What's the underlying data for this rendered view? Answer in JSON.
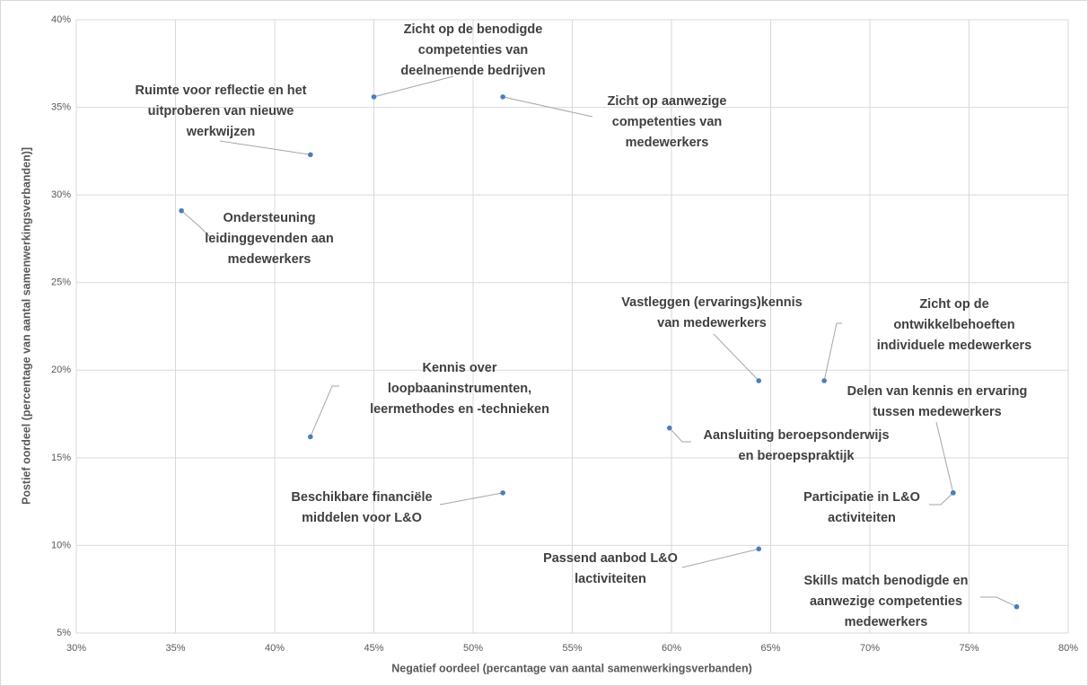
{
  "chart_data": {
    "type": "scatter",
    "x_label": "Negatief oordeel (percantage van aantal samenwerkingsverbanden)",
    "y_label": "Postief oordeel (percentage van aantal samenwerkingsverbanden)]",
    "color": "#4a7ebb",
    "grid": true,
    "xlim": [
      30,
      80
    ],
    "xticks": [
      {
        "value": 30,
        "label": "30%"
      },
      {
        "value": 35,
        "label": "35%"
      },
      {
        "value": 40,
        "label": "40%"
      },
      {
        "value": 45,
        "label": "45%"
      },
      {
        "value": 50,
        "label": "50%"
      },
      {
        "value": 55,
        "label": "55%"
      },
      {
        "value": 60,
        "label": "60%"
      },
      {
        "value": 65,
        "label": "65%"
      },
      {
        "value": 70,
        "label": "70%"
      },
      {
        "value": 75,
        "label": "75%"
      },
      {
        "value": 80,
        "label": "80%"
      }
    ],
    "ylim": [
      5,
      40
    ],
    "yticks": [
      {
        "value": 5,
        "label": "5%"
      },
      {
        "value": 10,
        "label": "10%"
      },
      {
        "value": 15,
        "label": "15%"
      },
      {
        "value": 20,
        "label": "20%"
      },
      {
        "value": 25,
        "label": "25%"
      },
      {
        "value": 30,
        "label": "30%"
      },
      {
        "value": 35,
        "label": "35%"
      },
      {
        "value": 40,
        "label": "40%"
      }
    ],
    "x": [
      41.8,
      45.0,
      51.5,
      35.3,
      64.4,
      67.7,
      41.8,
      59.9,
      51.5,
      74.2,
      74.2,
      64.4,
      77.4
    ],
    "values": [
      32.3,
      35.6,
      35.6,
      29.1,
      19.4,
      19.4,
      16.2,
      16.7,
      13.0,
      13.0,
      13.0,
      9.8,
      6.5
    ],
    "labels": [
      [
        "Ruimte voor reflectie en het",
        "uitproberen van nieuwe",
        "werkwijzen"
      ],
      [
        "Zicht op de benodigde",
        "competenties van",
        "deelnemende bedrijven"
      ],
      [
        "Zicht op aanwezige",
        "competenties van",
        "medewerkers"
      ],
      [
        "Ondersteuning",
        "leidinggevenden aan",
        "medewerkers"
      ],
      [
        "Vastleggen (ervarings)kennis",
        "van medewerkers"
      ],
      [
        "Zicht op de",
        "ontwikkelbehoeften",
        "individuele medewerkers"
      ],
      [
        "Kennis over",
        "loopbaaninstrumenten,",
        "leermethodes en -technieken"
      ],
      [
        "Aansluiting beroepsonderwijs",
        "en beroepspraktijk"
      ],
      [
        "Beschikbare financiële",
        "middelen voor L&O"
      ],
      [
        "Delen van kennis en ervaring",
        "tussen medewerkers"
      ],
      [
        "Participatie in L&O",
        "activiteiten"
      ],
      [
        "Passend aanbod L&O",
        "lactiviteiten"
      ],
      [
        "Skills match benodigde en",
        "aanwezige competenties",
        "medewerkers"
      ]
    ]
  }
}
